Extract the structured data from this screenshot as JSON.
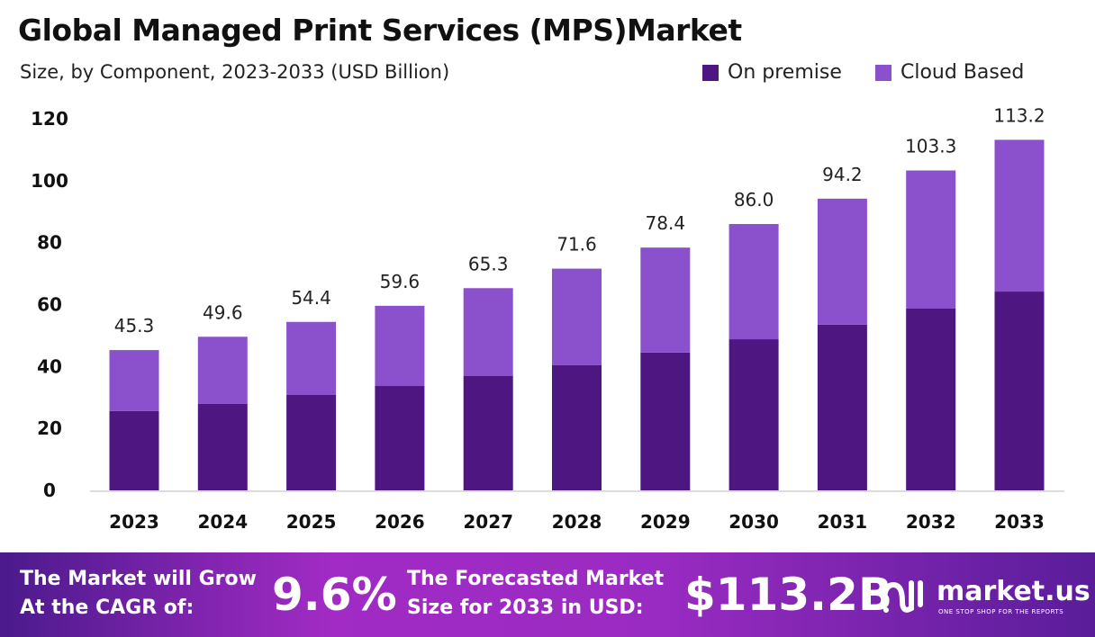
{
  "chart_data": {
    "type": "bar",
    "stacked": true,
    "title": "Global Managed Print Services (MPS)Market",
    "subtitle": "Size, by Component, 2023-2033 (USD Billion)",
    "categories": [
      "2023",
      "2024",
      "2025",
      "2026",
      "2027",
      "2028",
      "2029",
      "2030",
      "2031",
      "2032",
      "2033"
    ],
    "series": [
      {
        "name": "On premise",
        "color": "#4e1680",
        "values": [
          25.6,
          27.9,
          30.8,
          33.7,
          36.9,
          40.4,
          44.5,
          48.8,
          53.5,
          58.7,
          64.2
        ]
      },
      {
        "name": "Cloud Based",
        "color": "#8b50cc",
        "values": [
          19.7,
          21.7,
          23.6,
          25.9,
          28.4,
          31.2,
          33.9,
          37.2,
          40.7,
          44.6,
          49.0
        ]
      }
    ],
    "totals": [
      "45.3",
      "49.6",
      "54.4",
      "59.6",
      "65.3",
      "71.6",
      "78.4",
      "86.0",
      "94.2",
      "103.3",
      "113.2"
    ],
    "yticks": [
      "0",
      "20",
      "40",
      "60",
      "80",
      "100",
      "120"
    ],
    "ylim": [
      0,
      120
    ],
    "grid": false,
    "legend": "top-right"
  },
  "footer": {
    "cagr_label_1": "The Market will Grow",
    "cagr_label_2": "At the CAGR of:",
    "cagr_value": "9.6%",
    "forecast_label_1": "The Forecasted Market",
    "forecast_label_2": "Size for 2033 in USD:",
    "forecast_value": "$113.2B",
    "logo": "market.us",
    "logo_tagline": "ONE STOP SHOP FOR THE REPORTS"
  }
}
